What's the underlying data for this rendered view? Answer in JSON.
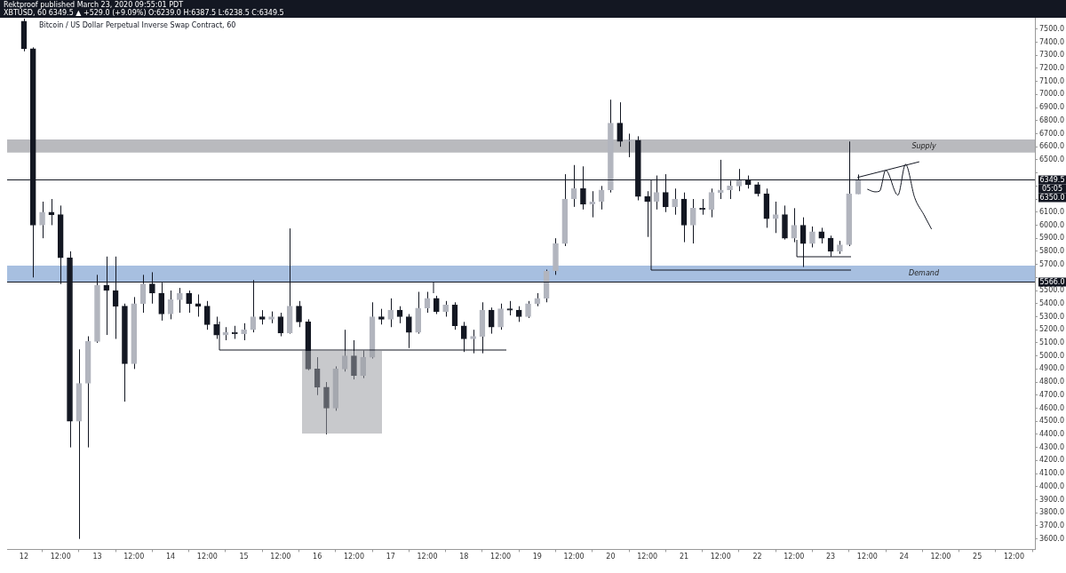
{
  "chart_data": {
    "type": "candlestick",
    "title": "Bitcoin / US Dollar Perpetual Inverse Swap Contract, 60",
    "subtitle": "Rektproof published March 23, 2020 09:55:01 PDT",
    "annotations": [
      "XBTUSD, 60 6349.5 ▲ +529.0 (+9.09%) O:6239.0 H:6387.5 L:6238.5 C:6349.5",
      "05:05",
      "6350.0"
    ],
    "x": [
      "2020-03-12T00:00",
      "2020-03-12T03:00",
      "2020-03-12T06:00",
      "2020-03-12T09:00",
      "2020-03-12T12:00",
      "2020-03-12T15:00",
      "2020-03-12T18:00",
      "2020-03-12T21:00",
      "2020-03-13T00:00",
      "2020-03-13T03:00",
      "2020-03-13T06:00",
      "2020-03-13T09:00",
      "2020-03-13T12:00",
      "2020-03-13T15:00",
      "2020-03-13T18:00",
      "2020-03-13T21:00",
      "2020-03-14T00:00",
      "2020-03-14T03:00",
      "2020-03-14T06:00",
      "2020-03-14T09:00",
      "2020-03-14T12:00",
      "2020-03-14T15:00",
      "2020-03-14T18:00",
      "2020-03-14T21:00",
      "2020-03-15T00:00",
      "2020-03-15T03:00",
      "2020-03-15T06:00",
      "2020-03-15T09:00",
      "2020-03-15T12:00",
      "2020-03-15T15:00",
      "2020-03-15T18:00",
      "2020-03-15T21:00",
      "2020-03-16T00:00",
      "2020-03-16T03:00",
      "2020-03-16T06:00",
      "2020-03-16T09:00",
      "2020-03-16T12:00",
      "2020-03-16T15:00",
      "2020-03-16T18:00",
      "2020-03-16T21:00",
      "2020-03-17T00:00",
      "2020-03-17T03:00",
      "2020-03-17T06:00",
      "2020-03-17T09:00",
      "2020-03-17T12:00",
      "2020-03-17T15:00",
      "2020-03-17T18:00",
      "2020-03-17T21:00",
      "2020-03-18T00:00",
      "2020-03-18T03:00",
      "2020-03-18T06:00",
      "2020-03-18T09:00",
      "2020-03-18T12:00",
      "2020-03-18T15:00",
      "2020-03-18T18:00",
      "2020-03-18T21:00",
      "2020-03-19T00:00",
      "2020-03-19T03:00",
      "2020-03-19T06:00",
      "2020-03-19T09:00",
      "2020-03-19T12:00",
      "2020-03-19T15:00",
      "2020-03-19T18:00",
      "2020-03-19T21:00",
      "2020-03-20T00:00",
      "2020-03-20T03:00",
      "2020-03-20T06:00",
      "2020-03-20T09:00",
      "2020-03-20T12:00",
      "2020-03-20T15:00",
      "2020-03-20T18:00",
      "2020-03-20T21:00",
      "2020-03-21T00:00",
      "2020-03-21T03:00",
      "2020-03-21T06:00",
      "2020-03-21T09:00",
      "2020-03-21T12:00",
      "2020-03-21T15:00",
      "2020-03-21T18:00",
      "2020-03-21T21:00",
      "2020-03-22T00:00",
      "2020-03-22T03:00",
      "2020-03-22T06:00",
      "2020-03-22T09:00",
      "2020-03-22T12:00",
      "2020-03-22T15:00",
      "2020-03-22T18:00",
      "2020-03-22T21:00",
      "2020-03-23T00:00",
      "2020-03-23T03:00",
      "2020-03-23T06:00",
      "2020-03-23T09:00"
    ],
    "ohlc": [
      [
        7560,
        7580,
        7330,
        7350
      ],
      [
        7350,
        7360,
        5600,
        6000
      ],
      [
        6000,
        6180,
        5900,
        6100
      ],
      [
        6100,
        6200,
        6000,
        6080
      ],
      [
        6080,
        6150,
        5550,
        5750
      ],
      [
        5750,
        5800,
        4300,
        4500
      ],
      [
        4500,
        5050,
        3600,
        4790
      ],
      [
        4790,
        5150,
        4300,
        5110
      ],
      [
        5110,
        5620,
        5100,
        5540
      ],
      [
        5540,
        5760,
        5160,
        5500
      ],
      [
        5500,
        5760,
        5130,
        5380
      ],
      [
        5380,
        5400,
        4650,
        4940
      ],
      [
        4940,
        5450,
        4900,
        5400
      ],
      [
        5400,
        5620,
        5330,
        5550
      ],
      [
        5550,
        5640,
        5400,
        5480
      ],
      [
        5480,
        5560,
        5270,
        5320
      ],
      [
        5320,
        5500,
        5280,
        5430
      ],
      [
        5430,
        5520,
        5330,
        5480
      ],
      [
        5480,
        5500,
        5330,
        5400
      ],
      [
        5400,
        5470,
        5300,
        5380
      ],
      [
        5380,
        5420,
        5200,
        5240
      ],
      [
        5240,
        5300,
        5130,
        5160
      ],
      [
        5160,
        5220,
        5120,
        5180
      ],
      [
        5180,
        5230,
        5130,
        5170
      ],
      [
        5170,
        5250,
        5120,
        5200
      ],
      [
        5200,
        5580,
        5180,
        5300
      ],
      [
        5300,
        5350,
        5240,
        5280
      ],
      [
        5280,
        5340,
        5250,
        5300
      ],
      [
        5300,
        5330,
        5150,
        5175
      ],
      [
        5175,
        5975,
        5170,
        5380
      ],
      [
        5380,
        5420,
        5220,
        5260
      ],
      [
        5260,
        5280,
        4890,
        4900
      ],
      [
        4900,
        4990,
        4700,
        4760
      ],
      [
        4760,
        4800,
        4400,
        4600
      ],
      [
        4600,
        4920,
        4580,
        4900
      ],
      [
        4900,
        5200,
        4880,
        5000
      ],
      [
        5000,
        5120,
        4820,
        4850
      ],
      [
        4850,
        5040,
        4830,
        4990
      ],
      [
        4990,
        5410,
        4980,
        5300
      ],
      [
        5300,
        5360,
        5240,
        5280
      ],
      [
        5280,
        5440,
        5220,
        5350
      ],
      [
        5350,
        5380,
        5250,
        5300
      ],
      [
        5300,
        5320,
        5060,
        5180
      ],
      [
        5180,
        5490,
        5170,
        5365
      ],
      [
        5365,
        5490,
        5330,
        5440
      ],
      [
        5440,
        5460,
        5320,
        5340
      ],
      [
        5340,
        5420,
        5300,
        5390
      ],
      [
        5390,
        5410,
        5200,
        5230
      ],
      [
        5230,
        5260,
        5030,
        5130
      ],
      [
        5130,
        5200,
        5020,
        5150
      ],
      [
        5150,
        5410,
        5020,
        5350
      ],
      [
        5350,
        5370,
        5170,
        5220
      ],
      [
        5220,
        5400,
        5200,
        5360
      ],
      [
        5360,
        5420,
        5310,
        5350
      ],
      [
        5350,
        5380,
        5260,
        5300
      ],
      [
        5300,
        5420,
        5290,
        5400
      ],
      [
        5400,
        5480,
        5380,
        5440
      ],
      [
        5440,
        5660,
        5410,
        5650
      ],
      [
        5650,
        5900,
        5620,
        5860
      ],
      [
        5860,
        6390,
        5840,
        6200
      ],
      [
        6200,
        6460,
        6140,
        6280
      ],
      [
        6280,
        6450,
        6120,
        6160
      ],
      [
        6160,
        6260,
        6060,
        6180
      ],
      [
        6180,
        6300,
        6120,
        6270
      ],
      [
        6270,
        6960,
        6250,
        6780
      ],
      [
        6780,
        6940,
        6600,
        6640
      ],
      [
        6640,
        6700,
        6520,
        6650
      ],
      [
        6650,
        6680,
        6190,
        6220
      ],
      [
        6220,
        6260,
        5910,
        6180
      ],
      [
        6180,
        6380,
        6120,
        6250
      ],
      [
        6250,
        6390,
        6100,
        6140
      ],
      [
        6140,
        6280,
        6080,
        6200
      ],
      [
        6200,
        6250,
        5870,
        6000
      ],
      [
        6000,
        6200,
        5860,
        6130
      ],
      [
        6130,
        6200,
        6080,
        6120
      ],
      [
        6120,
        6280,
        6060,
        6250
      ],
      [
        6250,
        6500,
        6200,
        6270
      ],
      [
        6270,
        6340,
        6200,
        6300
      ],
      [
        6300,
        6430,
        6260,
        6350
      ],
      [
        6350,
        6380,
        6280,
        6310
      ],
      [
        6310,
        6330,
        6220,
        6240
      ],
      [
        6240,
        6280,
        5980,
        6050
      ],
      [
        6050,
        6180,
        5940,
        6080
      ],
      [
        6080,
        6150,
        5890,
        5900
      ],
      [
        5900,
        6130,
        5870,
        6000
      ],
      [
        6000,
        6060,
        5680,
        5860
      ],
      [
        5860,
        5990,
        5830,
        5950
      ],
      [
        5950,
        5980,
        5860,
        5900
      ],
      [
        5900,
        5920,
        5760,
        5800
      ],
      [
        5800,
        5880,
        5780,
        5850
      ],
      [
        5850,
        6640,
        5840,
        6240
      ],
      [
        6239,
        6387.5,
        6238.5,
        6349.5
      ]
    ],
    "colors": [
      "#131722",
      "#131722",
      "#b2b5be",
      "#131722",
      "#131722",
      "#131722",
      "#b2b5be",
      "#b2b5be",
      "#b2b5be",
      "#131722",
      "#131722",
      "#131722",
      "#b2b5be",
      "#b2b5be",
      "#131722",
      "#131722",
      "#b2b5be",
      "#b2b5be",
      "#131722",
      "#131722",
      "#131722",
      "#131722",
      "#b2b5be",
      "#131722",
      "#b2b5be",
      "#b2b5be",
      "#131722",
      "#b2b5be",
      "#131722",
      "#b2b5be",
      "#131722",
      "#131722",
      "#131722",
      "#131722",
      "#b2b5be",
      "#b2b5be",
      "#131722",
      "#b2b5be",
      "#b2b5be",
      "#131722",
      "#b2b5be",
      "#131722",
      "#131722",
      "#b2b5be",
      "#b2b5be",
      "#131722",
      "#b2b5be",
      "#131722",
      "#131722",
      "#b2b5be",
      "#b2b5be",
      "#131722",
      "#b2b5be",
      "#131722",
      "#131722",
      "#b2b5be",
      "#b2b5be",
      "#b2b5be",
      "#b2b5be",
      "#b2b5be",
      "#b2b5be",
      "#131722",
      "#b2b5be",
      "#b2b5be",
      "#b2b5be",
      "#131722",
      "#b2b5be",
      "#131722",
      "#131722",
      "#b2b5be",
      "#131722",
      "#b2b5be",
      "#131722",
      "#b2b5be",
      "#131722",
      "#b2b5be",
      "#b2b5be",
      "#b2b5be",
      "#b2b5be",
      "#131722",
      "#131722",
      "#131722",
      "#b2b5be",
      "#131722",
      "#b2b5be",
      "#131722",
      "#b2b5be",
      "#131722",
      "#131722",
      "#b2b5be",
      "#b2b5be",
      "#b2b5be"
    ],
    "xlim": [
      "2020-03-11T18:30",
      "2020-03-25T18:50"
    ],
    "xticks": [
      {
        "value": "2020-03-12",
        "label": "12"
      },
      {
        "value": "2020-03-12T12:00",
        "label": "12:00"
      },
      {
        "value": "2020-03-13",
        "label": "13"
      },
      {
        "value": "2020-03-13T12:00",
        "label": "12:00"
      },
      {
        "value": "2020-03-14",
        "label": "14"
      },
      {
        "value": "2020-03-14T12:00",
        "label": "12:00"
      },
      {
        "value": "2020-03-15",
        "label": "15"
      },
      {
        "value": "2020-03-15T12:00",
        "label": "12:00"
      },
      {
        "value": "2020-03-16",
        "label": "16"
      },
      {
        "value": "2020-03-16T12:00",
        "label": "12:00"
      },
      {
        "value": "2020-03-17",
        "label": "17"
      },
      {
        "value": "2020-03-17T12:00",
        "label": "12:00"
      },
      {
        "value": "2020-03-18",
        "label": "18"
      },
      {
        "value": "2020-03-18T12:00",
        "label": "12:00"
      },
      {
        "value": "2020-03-19",
        "label": "19"
      },
      {
        "value": "2020-03-19T12:00",
        "label": "12:00"
      },
      {
        "value": "2020-03-20",
        "label": "20"
      },
      {
        "value": "2020-03-20T12:00",
        "label": "12:00"
      },
      {
        "value": "2020-03-21",
        "label": "21"
      },
      {
        "value": "2020-03-21T12:00",
        "label": "12:00"
      },
      {
        "value": "2020-03-22",
        "label": "22"
      },
      {
        "value": "2020-03-22T12:00",
        "label": "12:00"
      },
      {
        "value": "2020-03-23",
        "label": "23"
      },
      {
        "value": "2020-03-23T12:00",
        "label": "12:00"
      },
      {
        "value": "2020-03-24",
        "label": "24"
      },
      {
        "value": "2020-03-24T12:00",
        "label": "12:00"
      },
      {
        "value": "2020-03-25",
        "label": "25"
      },
      {
        "value": "2020-03-25T12:00",
        "label": "12:00"
      }
    ],
    "ylim": [
      3520,
      7590
    ],
    "yticks": [
      {
        "value": 3600,
        "label": "3600.0"
      },
      {
        "value": 3700,
        "label": "3700.0"
      },
      {
        "value": 3800,
        "label": "3800.0"
      },
      {
        "value": 3900,
        "label": "3900.0"
      },
      {
        "value": 4000,
        "label": "4000.0"
      },
      {
        "value": 4100,
        "label": "4100.0"
      },
      {
        "value": 4200,
        "label": "4200.0"
      },
      {
        "value": 4300,
        "label": "4300.0"
      },
      {
        "value": 4400,
        "label": "4400.0"
      },
      {
        "value": 4500,
        "label": "4500.0"
      },
      {
        "value": 4600,
        "label": "4600.0"
      },
      {
        "value": 4700,
        "label": "4700.0"
      },
      {
        "value": 4800,
        "label": "4800.0"
      },
      {
        "value": 4900,
        "label": "4900.0"
      },
      {
        "value": 5000,
        "label": "5000.0"
      },
      {
        "value": 5100,
        "label": "5100.0"
      },
      {
        "value": 5200,
        "label": "5200.0"
      },
      {
        "value": 5300,
        "label": "5300.0"
      },
      {
        "value": 5400,
        "label": "5400.0"
      },
      {
        "value": 5500,
        "label": "5500.0"
      },
      {
        "value": 5600,
        "label": null
      },
      {
        "value": 5700,
        "label": "5700.0"
      },
      {
        "value": 5800,
        "label": "5800.0"
      },
      {
        "value": 5900,
        "label": "5900.0"
      },
      {
        "value": 6000,
        "label": "6000.0"
      },
      {
        "value": 6100,
        "label": "6100.0"
      },
      {
        "value": 6200,
        "label": null
      },
      {
        "value": 6300,
        "label": null
      },
      {
        "value": 6400,
        "label": null
      },
      {
        "value": 6500,
        "label": "6500.0"
      },
      {
        "value": 6600,
        "label": "6600.0"
      },
      {
        "value": 6700,
        "label": "6700.0"
      },
      {
        "value": 6800,
        "label": "6800.0"
      },
      {
        "value": 6900,
        "label": "6900.0"
      },
      {
        "value": 7000,
        "label": "7000.0"
      },
      {
        "value": 7100,
        "label": "7100.0"
      },
      {
        "value": 7200,
        "label": "7200.0"
      },
      {
        "value": 7300,
        "label": "7300.0"
      },
      {
        "value": 7400,
        "label": "7400.0"
      },
      {
        "value": 7500,
        "label": "7500.0"
      }
    ],
    "series": [
      {
        "type": "line",
        "color": "#131722",
        "x": [
          "2020-03-23T12:00",
          "2020-03-23T14:30",
          "2020-03-23T16:00",
          "2020-03-23T18:00",
          "2020-03-23T22:00",
          "2020-03-24T00:30",
          "2020-03-24T03:30",
          "2020-03-24T06:30",
          "2020-03-24T09:00"
        ],
        "values": [
          6275,
          6255,
          6260,
          6420,
          6230,
          6465,
          6210,
          6080,
          5970
        ]
      },
      {
        "type": "line",
        "color": "#131722",
        "x": [
          "2020-03-23T08:45",
          "2020-03-24T05:00"
        ],
        "values": [
          6365,
          6485
        ]
      }
    ],
    "ref_lines": [
      {
        "axis": "y",
        "value": 6349.5,
        "label": "6349.5",
        "color": "#131722"
      },
      {
        "axis": "y",
        "value": 5566,
        "label": "5566.0",
        "color": "#131722"
      }
    ],
    "bands": [
      {
        "axis": "y",
        "from": 6555,
        "to": 6655,
        "label": "Supply",
        "color": "#b9babe"
      },
      {
        "axis": "y",
        "from": 5566,
        "to": 5690,
        "label": "Demand",
        "color": "#a7bfe0"
      }
    ]
  }
}
